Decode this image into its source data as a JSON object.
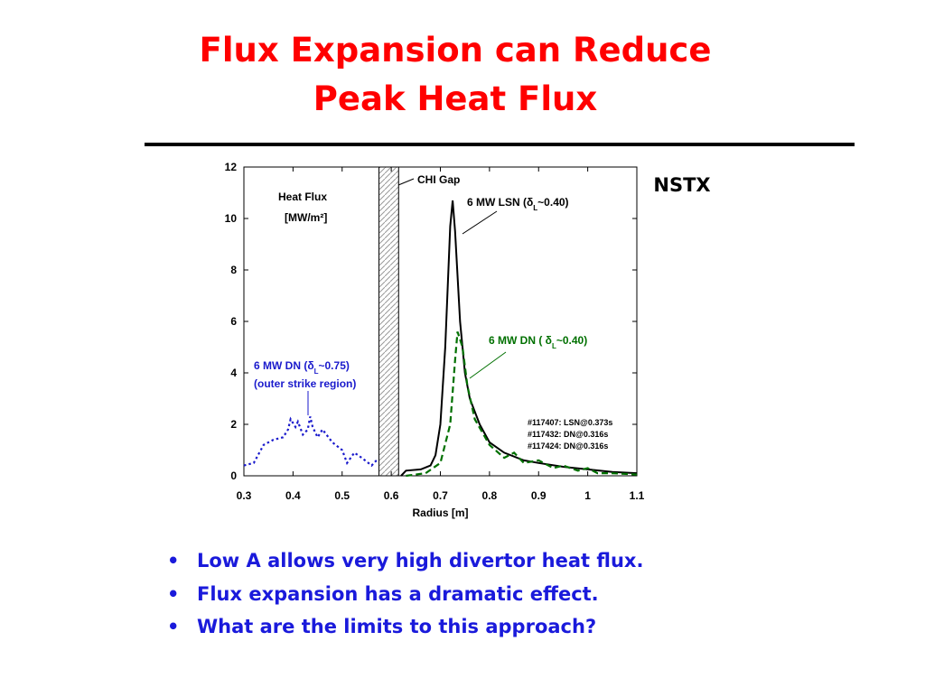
{
  "title": [
    "Flux Expansion can Reduce",
    "Peak Heat Flux"
  ],
  "device": "NSTX",
  "bullets": [
    "Low A allows very high divertor heat flux.",
    "Flux expansion has a dramatic effect.",
    "What are the limits to this approach?"
  ],
  "chart_data": {
    "type": "line",
    "xlabel": "Radius [m]",
    "ylabel": "Heat Flux",
    "yunit": "[MW/m²]",
    "xlim": [
      0.3,
      1.1
    ],
    "xticks": [
      0.3,
      0.4,
      0.5,
      0.6,
      0.7,
      0.8,
      0.9,
      1,
      1.1
    ],
    "ylim": [
      0,
      12
    ],
    "yticks": [
      0,
      2,
      4,
      6,
      8,
      10,
      12
    ],
    "gap": {
      "label": "CHI Gap",
      "range": [
        0.575,
        0.615
      ]
    },
    "shots": [
      "#117407: LSN@0.373s",
      "#117432: DN@0.316s",
      "#117424: DN@0.316s"
    ],
    "series": [
      {
        "label": {
          "pre": "6 MW LSN (δ",
          "sub": "L",
          "post": "~0.40)"
        },
        "color": "#000000",
        "dash": "solid",
        "x": [
          0.62,
          0.63,
          0.66,
          0.68,
          0.69,
          0.7,
          0.71,
          0.72,
          0.725,
          0.73,
          0.74,
          0.75,
          0.76,
          0.78,
          0.8,
          0.83,
          0.87,
          0.9,
          0.95,
          1.0,
          1.05,
          1.1
        ],
        "values": [
          0,
          0.2,
          0.25,
          0.4,
          0.8,
          2,
          5,
          9.7,
          10.7,
          9.5,
          6,
          4,
          3,
          2,
          1.3,
          0.9,
          0.6,
          0.5,
          0.35,
          0.25,
          0.15,
          0.1
        ]
      },
      {
        "label": {
          "pre": "6 MW DN ( δ",
          "sub": "L",
          "post": "~0.40)"
        },
        "color": "#007000",
        "dash": "dashed",
        "x": [
          0.63,
          0.67,
          0.7,
          0.72,
          0.73,
          0.735,
          0.745,
          0.755,
          0.77,
          0.8,
          0.83,
          0.85,
          0.87,
          0.9,
          0.93,
          0.95,
          0.98,
          1.0,
          1.02,
          1.05,
          1.1
        ],
        "values": [
          0,
          0.1,
          0.5,
          2,
          4.5,
          5.6,
          5,
          3.5,
          2.2,
          1.2,
          0.7,
          0.9,
          0.5,
          0.6,
          0.3,
          0.4,
          0.2,
          0.3,
          0.1,
          0.1,
          0.05
        ]
      },
      {
        "label": {
          "pre": "6 MW DN (δ",
          "sub": "L",
          "post": "~0.75)"
        },
        "note": "(outer strike region)",
        "color": "#1a1acc",
        "dash": "dotted",
        "x": [
          0.3,
          0.32,
          0.34,
          0.36,
          0.38,
          0.39,
          0.395,
          0.405,
          0.41,
          0.42,
          0.43,
          0.435,
          0.44,
          0.45,
          0.46,
          0.48,
          0.5,
          0.51,
          0.525,
          0.54,
          0.56,
          0.57
        ],
        "values": [
          0.4,
          0.5,
          1.2,
          1.4,
          1.5,
          1.8,
          2.2,
          1.9,
          2.1,
          1.6,
          1.8,
          2.3,
          1.9,
          1.5,
          1.8,
          1.3,
          1.0,
          0.5,
          0.9,
          0.7,
          0.4,
          0.6
        ]
      }
    ]
  }
}
